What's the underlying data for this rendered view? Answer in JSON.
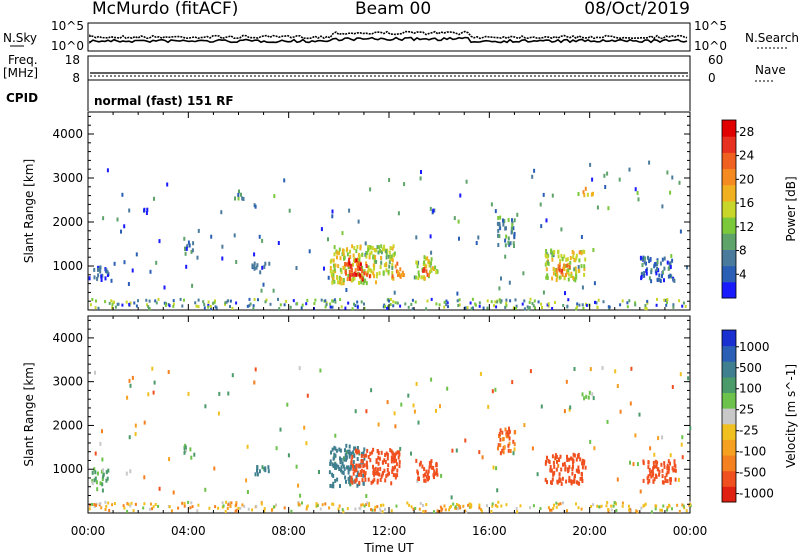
{
  "header": {
    "station": "McMurdo (fitACF)",
    "beam": "Beam 00",
    "date": "08/Oct/2019"
  },
  "top_panels": {
    "nsky_label": "N.Sky",
    "nsearch_label": "N.Search",
    "noise_ticks_left": [
      "10^5",
      "10^0"
    ],
    "noise_ticks_right": [
      "10^5",
      "10^0"
    ],
    "freq_label": "Freq.",
    "freq_unit": "[MHz]",
    "freq_ticks": [
      "18",
      "8"
    ],
    "nave_label": "Nave",
    "nave_ticks": [
      "60",
      "0"
    ],
    "cpid_label": "CPID",
    "cpid_value": "normal (fast) 151 RF"
  },
  "chart_data": [
    {
      "type": "heatmap",
      "name": "power",
      "ylabel": "Slant Range [km]",
      "ylim": [
        0,
        4500
      ],
      "yticks": [
        "1000",
        "2000",
        "3000",
        "4000"
      ],
      "xlim": [
        0,
        24
      ],
      "xticks": [
        "00:00",
        "04:00",
        "08:00",
        "12:00",
        "16:00",
        "20:00",
        "00:00"
      ],
      "xlabel": "Time UT",
      "colorbar": {
        "label": "Power [dB]",
        "ticks": [
          "4",
          "8",
          "12",
          "16",
          "20",
          "24",
          "28"
        ],
        "colors": [
          "#1a1aff",
          "#2b5fb5",
          "#4a7a9c",
          "#5ea36a",
          "#7bc83a",
          "#c8d62a",
          "#f0b020",
          "#f58a20",
          "#f06020",
          "#e83020",
          "#e00000"
        ]
      },
      "regions": [
        {
          "t0": 0.1,
          "t1": 0.8,
          "r0": 700,
          "r1": 1050,
          "v": 6
        },
        {
          "t0": 3.8,
          "t1": 4.2,
          "r0": 1300,
          "r1": 1600,
          "v": 6
        },
        {
          "t0": 2.2,
          "t1": 2.4,
          "r0": 2150,
          "r1": 2350,
          "v": 5
        },
        {
          "t0": 6.5,
          "t1": 7.2,
          "r0": 900,
          "r1": 1100,
          "v": 6
        },
        {
          "t0": 5.8,
          "t1": 6.2,
          "r0": 2550,
          "r1": 2750,
          "v": 9
        },
        {
          "t0": 9.6,
          "t1": 11.5,
          "r0": 650,
          "r1": 1500,
          "v": 16
        },
        {
          "t0": 10.2,
          "t1": 11.2,
          "r0": 700,
          "r1": 1200,
          "v": 26
        },
        {
          "t0": 11.4,
          "t1": 12.2,
          "r0": 750,
          "r1": 1500,
          "v": 14
        },
        {
          "t0": 12.1,
          "t1": 12.6,
          "r0": 800,
          "r1": 1100,
          "v": 22
        },
        {
          "t0": 13.0,
          "t1": 13.9,
          "r0": 750,
          "r1": 1250,
          "v": 16
        },
        {
          "t0": 13.3,
          "t1": 13.6,
          "r0": 800,
          "r1": 1050,
          "v": 24
        },
        {
          "t0": 16.3,
          "t1": 17.0,
          "r0": 1500,
          "r1": 2100,
          "v": 9
        },
        {
          "t0": 18.2,
          "t1": 19.8,
          "r0": 700,
          "r1": 1400,
          "v": 16
        },
        {
          "t0": 18.6,
          "t1": 19.2,
          "r0": 800,
          "r1": 1100,
          "v": 22
        },
        {
          "t0": 19.6,
          "t1": 20.2,
          "r0": 2650,
          "r1": 2800,
          "v": 18
        },
        {
          "t0": 22.0,
          "t1": 23.4,
          "r0": 700,
          "r1": 1250,
          "v": 7
        }
      ]
    },
    {
      "type": "heatmap",
      "name": "velocity",
      "ylabel": "Slant Range [km]",
      "ylim": [
        0,
        4500
      ],
      "yticks": [
        "1000",
        "2000",
        "3000",
        "4000"
      ],
      "xlim": [
        0,
        24
      ],
      "xticks": [
        "00:00",
        "04:00",
        "08:00",
        "12:00",
        "16:00",
        "20:00",
        "00:00"
      ],
      "xlabel": "Time UT",
      "colorbar": {
        "label": "Velocity [m s^-1]",
        "ticks": [
          "1000",
          "500",
          "100",
          "25",
          "-25",
          "-100",
          "-500",
          "-1000"
        ],
        "colors": [
          "#1a2fd0",
          "#2b5fb5",
          "#3f7f8f",
          "#4a9a6a",
          "#6cc24a",
          "#c8c8c8",
          "#f0c020",
          "#f5a020",
          "#f58020",
          "#f05020",
          "#e02010"
        ]
      },
      "regions": [
        {
          "t0": 0.1,
          "t1": 0.8,
          "r0": 700,
          "r1": 1050,
          "v": 100
        },
        {
          "t0": 3.8,
          "t1": 4.2,
          "r0": 1300,
          "r1": 1600,
          "v": 100
        },
        {
          "t0": 6.5,
          "t1": 7.2,
          "r0": 900,
          "r1": 1100,
          "v": 300
        },
        {
          "t0": 9.6,
          "t1": 11.0,
          "r0": 650,
          "r1": 1600,
          "v": 300
        },
        {
          "t0": 10.4,
          "t1": 12.4,
          "r0": 700,
          "r1": 1500,
          "v": -200
        },
        {
          "t0": 13.0,
          "t1": 13.9,
          "r0": 750,
          "r1": 1250,
          "v": -200
        },
        {
          "t0": 16.3,
          "t1": 17.0,
          "r0": 1400,
          "r1": 2000,
          "v": -100
        },
        {
          "t0": 18.2,
          "t1": 19.8,
          "r0": 700,
          "r1": 1400,
          "v": -200
        },
        {
          "t0": 19.6,
          "t1": 20.2,
          "r0": 2650,
          "r1": 2800,
          "v": 100
        },
        {
          "t0": 22.0,
          "t1": 23.4,
          "r0": 700,
          "r1": 1250,
          "v": -200
        }
      ]
    }
  ]
}
